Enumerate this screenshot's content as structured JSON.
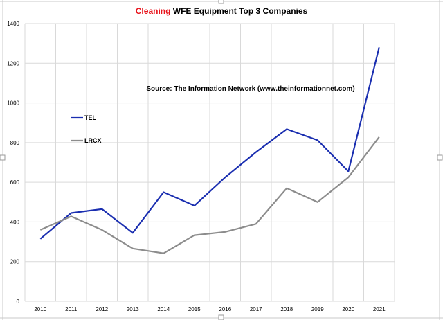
{
  "chart_data": {
    "type": "line",
    "title_highlight": "Cleaning",
    "title_rest": " WFE Equipment Top 3 Companies",
    "annotation": "Source: The Information Network (www.theinformationnet.com)",
    "categories": [
      "2010",
      "2011",
      "2012",
      "2013",
      "2014",
      "2015",
      "2016",
      "2017",
      "2018",
      "2019",
      "2020",
      "2021"
    ],
    "y_ticks": [
      "0",
      "200",
      "400",
      "600",
      "800",
      "1000",
      "1200",
      "1400"
    ],
    "ylim": [
      0,
      1400
    ],
    "grid": true,
    "series": [
      {
        "name": "TEL",
        "color": "#1a2eb0",
        "values": [
          315,
          445,
          465,
          345,
          550,
          482,
          625,
          752,
          868,
          812,
          655,
          1280
        ]
      },
      {
        "name": "LRCX",
        "color": "#8c8c8c",
        "values": [
          360,
          428,
          360,
          266,
          242,
          333,
          350,
          390,
          570,
          500,
          625,
          828
        ]
      }
    ]
  },
  "colors": {
    "title_highlight": "#e8141c",
    "title_rest": "#000000",
    "grid": "#d9d9d9"
  }
}
